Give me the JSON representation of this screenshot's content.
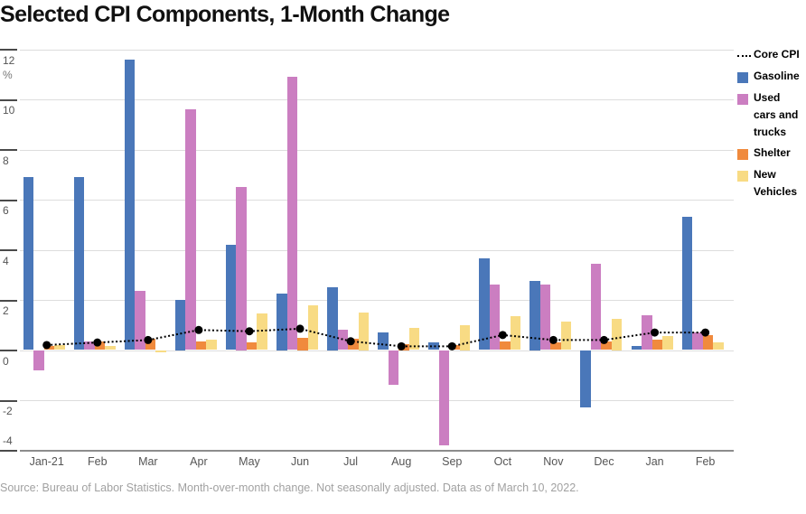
{
  "title": "Selected CPI Components, 1-Month Change",
  "source": "Source: Bureau of Labor Statistics. Month-over-month change. Not seasonally adjusted. Data as of March 10, 2022.",
  "legend": {
    "items": [
      {
        "label": "Core CPI",
        "swatch": "dotted-line"
      },
      {
        "label": "Gasoline",
        "swatch": "square"
      },
      {
        "label": "Used cars and trucks",
        "swatch": "square"
      },
      {
        "label": "Shelter",
        "swatch": "square"
      },
      {
        "label": "New Vehicles",
        "swatch": "square"
      }
    ]
  },
  "chart_data": {
    "type": "bar",
    "title": "Selected CPI Components, 1-Month Change",
    "categories": [
      "Jan-21",
      "Feb",
      "Mar",
      "Apr",
      "May",
      "Jun",
      "Jul",
      "Aug",
      "Sep",
      "Oct",
      "Nov",
      "Dec",
      "Jan",
      "Feb"
    ],
    "series": [
      {
        "name": "Gasoline",
        "color": "#4A77B9",
        "values": [
          6.9,
          6.9,
          11.6,
          2.0,
          4.2,
          2.25,
          2.5,
          0.7,
          0.3,
          3.65,
          2.75,
          -2.3,
          0.15,
          5.3
        ]
      },
      {
        "name": "Used cars and trucks",
        "color": "#CB7EC1",
        "values": [
          -0.8,
          0.35,
          2.35,
          9.6,
          6.5,
          10.9,
          0.8,
          -1.4,
          -3.8,
          2.6,
          2.6,
          3.45,
          1.4,
          0.7
        ]
      },
      {
        "name": "Shelter",
        "color": "#F08A3D",
        "values": [
          0.15,
          0.35,
          0.45,
          0.35,
          0.3,
          0.5,
          0.45,
          0.25,
          0.2,
          0.35,
          0.3,
          0.35,
          0.4,
          0.6
        ]
      },
      {
        "name": "New Vehicles",
        "color": "#F8DB84",
        "values": [
          0.2,
          0.15,
          -0.1,
          0.4,
          1.45,
          1.8,
          1.5,
          0.9,
          1.0,
          1.35,
          1.15,
          1.25,
          0.55,
          0.3
        ]
      }
    ],
    "line_series": {
      "name": "Core CPI",
      "color": "#000000",
      "style": "dotted",
      "values": [
        0.2,
        0.3,
        0.4,
        0.8,
        0.75,
        0.85,
        0.35,
        0.15,
        0.15,
        0.6,
        0.4,
        0.4,
        0.7,
        0.7
      ]
    },
    "y_axis": {
      "unit": "%",
      "ticks": [
        12,
        10,
        8,
        6,
        4,
        2,
        0,
        -2,
        -4
      ],
      "range": [
        -4,
        12
      ]
    },
    "grid": true,
    "legend_position": "right"
  },
  "colors": {
    "grid": "#DDDDDD",
    "baseline": "#8C8C8C",
    "tick": "#4A4A4A",
    "axis_text": "#555555",
    "source_text": "#A1A1A1"
  }
}
